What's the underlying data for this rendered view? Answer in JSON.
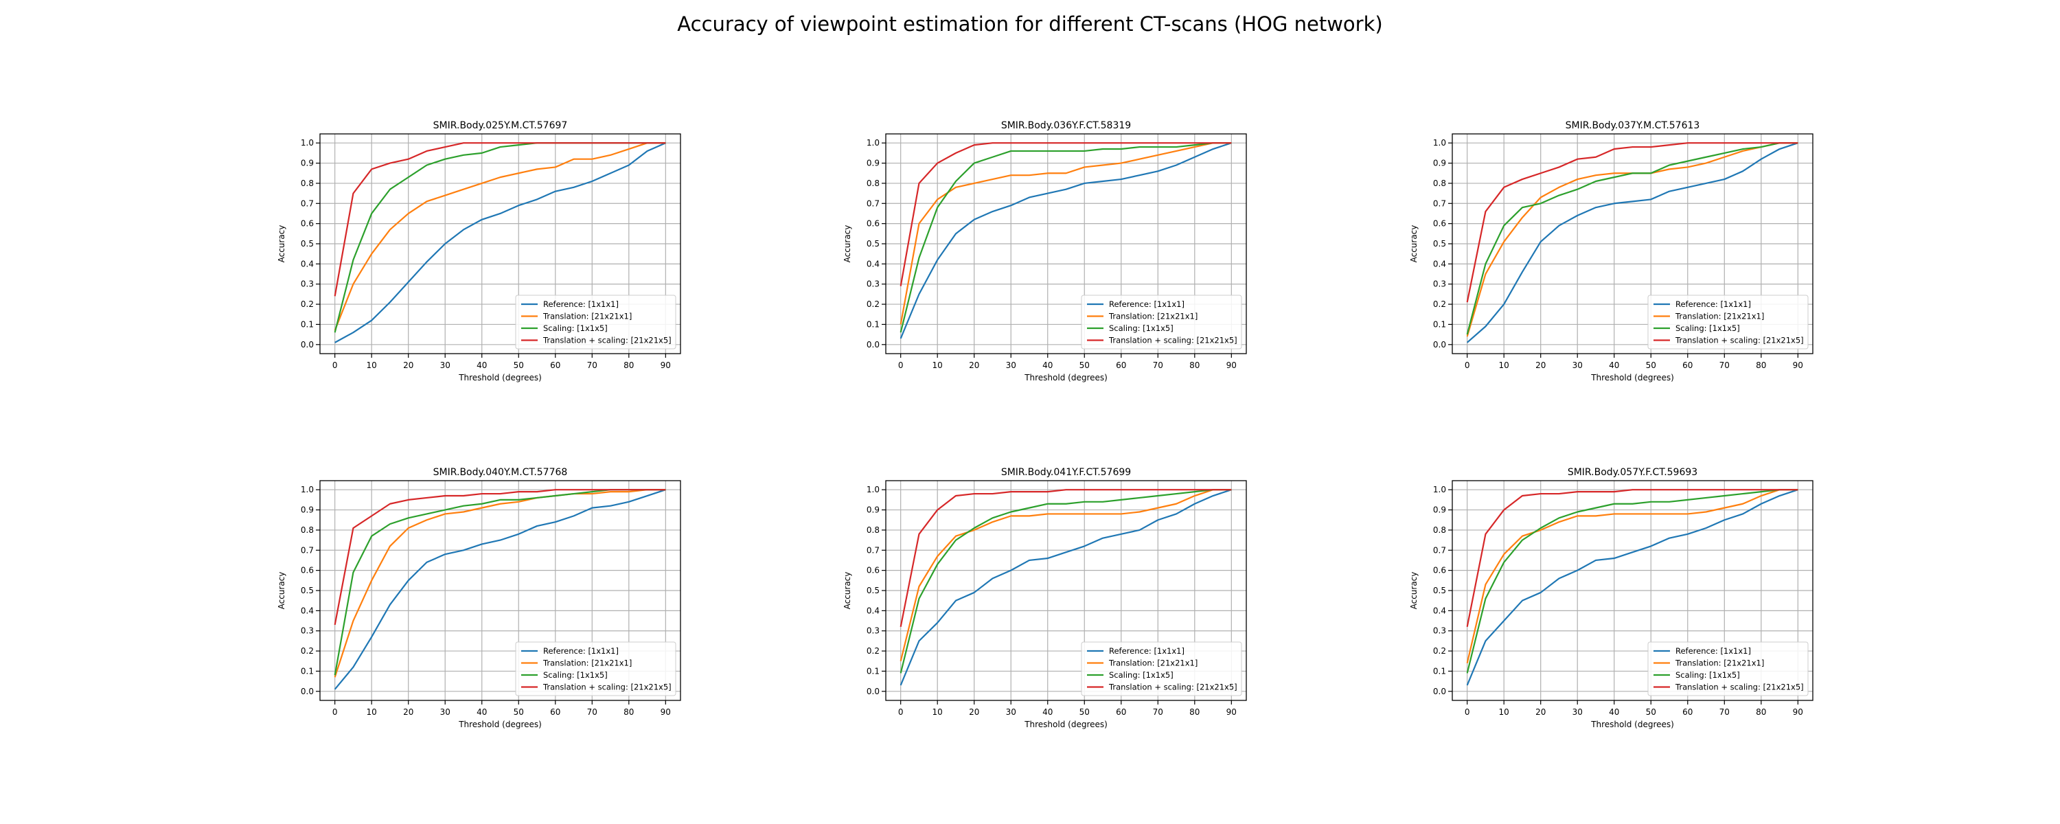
{
  "figure": {
    "title": "Accuracy of viewpoint estimation for different CT-scans (HOG network)"
  },
  "colors": {
    "blue": "#1f77b4",
    "orange": "#ff7f0e",
    "green": "#2ca02c",
    "red": "#d62728",
    "grid": "#b0b0b0"
  },
  "chart_data": [
    {
      "type": "line",
      "title": "SMIR.Body.025Y.M.CT.57697",
      "xlabel": "Threshold (degrees)",
      "ylabel": "Accuracy",
      "xlim": [
        0,
        90
      ],
      "ylim": [
        0,
        1
      ],
      "grid": true,
      "legend_position": "lower-right",
      "x": [
        0,
        5,
        10,
        15,
        20,
        25,
        30,
        35,
        40,
        45,
        50,
        55,
        60,
        65,
        70,
        75,
        80,
        85,
        90
      ],
      "x_ticks": [
        0,
        10,
        20,
        30,
        40,
        50,
        60,
        70,
        80,
        90
      ],
      "y_ticks": [
        "0.0",
        "0.1",
        "0.2",
        "0.3",
        "0.4",
        "0.5",
        "0.6",
        "0.7",
        "0.8",
        "0.9",
        "1.0"
      ],
      "series": [
        {
          "name": "Reference: [1x1x1]",
          "color": "#1f77b4",
          "values": [
            0.01,
            0.06,
            0.12,
            0.21,
            0.31,
            0.41,
            0.5,
            0.57,
            0.62,
            0.65,
            0.69,
            0.72,
            0.76,
            0.78,
            0.81,
            0.85,
            0.89,
            0.96,
            1.0
          ]
        },
        {
          "name": "Translation: [21x21x1]",
          "color": "#ff7f0e",
          "values": [
            0.07,
            0.3,
            0.45,
            0.57,
            0.65,
            0.71,
            0.74,
            0.77,
            0.8,
            0.83,
            0.85,
            0.87,
            0.88,
            0.92,
            0.92,
            0.94,
            0.97,
            1.0,
            1.0
          ]
        },
        {
          "name": "Scaling: [1x1x5]",
          "color": "#2ca02c",
          "values": [
            0.06,
            0.42,
            0.65,
            0.77,
            0.83,
            0.89,
            0.92,
            0.94,
            0.95,
            0.98,
            0.99,
            1.0,
            1.0,
            1.0,
            1.0,
            1.0,
            1.0,
            1.0,
            1.0
          ]
        },
        {
          "name": "Translation + scaling: [21x21x5]",
          "color": "#d62728",
          "values": [
            0.24,
            0.75,
            0.87,
            0.9,
            0.92,
            0.96,
            0.98,
            1.0,
            1.0,
            1.0,
            1.0,
            1.0,
            1.0,
            1.0,
            1.0,
            1.0,
            1.0,
            1.0,
            1.0
          ]
        }
      ]
    },
    {
      "type": "line",
      "title": "SMIR.Body.036Y.F.CT.58319",
      "xlabel": "Threshold (degrees)",
      "ylabel": "Accuracy",
      "xlim": [
        0,
        90
      ],
      "ylim": [
        0,
        1
      ],
      "grid": true,
      "legend_position": "lower-right",
      "x": [
        0,
        5,
        10,
        15,
        20,
        25,
        30,
        35,
        40,
        45,
        50,
        55,
        60,
        65,
        70,
        75,
        80,
        85,
        90
      ],
      "x_ticks": [
        0,
        10,
        20,
        30,
        40,
        50,
        60,
        70,
        80,
        90
      ],
      "y_ticks": [
        "0.0",
        "0.1",
        "0.2",
        "0.3",
        "0.4",
        "0.5",
        "0.6",
        "0.7",
        "0.8",
        "0.9",
        "1.0"
      ],
      "series": [
        {
          "name": "Reference: [1x1x1]",
          "color": "#1f77b4",
          "values": [
            0.03,
            0.25,
            0.42,
            0.55,
            0.62,
            0.66,
            0.69,
            0.73,
            0.75,
            0.77,
            0.8,
            0.81,
            0.82,
            0.84,
            0.86,
            0.89,
            0.93,
            0.97,
            1.0
          ]
        },
        {
          "name": "Translation: [21x21x1]",
          "color": "#ff7f0e",
          "values": [
            0.1,
            0.6,
            0.72,
            0.78,
            0.8,
            0.82,
            0.84,
            0.84,
            0.85,
            0.85,
            0.88,
            0.89,
            0.9,
            0.92,
            0.94,
            0.96,
            0.98,
            1.0,
            1.0
          ]
        },
        {
          "name": "Scaling: [1x1x5]",
          "color": "#2ca02c",
          "values": [
            0.06,
            0.43,
            0.68,
            0.81,
            0.9,
            0.93,
            0.96,
            0.96,
            0.96,
            0.96,
            0.96,
            0.97,
            0.97,
            0.98,
            0.98,
            0.98,
            0.99,
            1.0,
            1.0
          ]
        },
        {
          "name": "Translation + scaling: [21x21x5]",
          "color": "#d62728",
          "values": [
            0.29,
            0.8,
            0.9,
            0.95,
            0.99,
            1.0,
            1.0,
            1.0,
            1.0,
            1.0,
            1.0,
            1.0,
            1.0,
            1.0,
            1.0,
            1.0,
            1.0,
            1.0,
            1.0
          ]
        }
      ]
    },
    {
      "type": "line",
      "title": "SMIR.Body.037Y.M.CT.57613",
      "xlabel": "Threshold (degrees)",
      "ylabel": "Accuracy",
      "xlim": [
        0,
        90
      ],
      "ylim": [
        0,
        1
      ],
      "grid": true,
      "legend_position": "lower-right",
      "x": [
        0,
        5,
        10,
        15,
        20,
        25,
        30,
        35,
        40,
        45,
        50,
        55,
        60,
        65,
        70,
        75,
        80,
        85,
        90
      ],
      "x_ticks": [
        0,
        10,
        20,
        30,
        40,
        50,
        60,
        70,
        80,
        90
      ],
      "y_ticks": [
        "0.0",
        "0.1",
        "0.2",
        "0.3",
        "0.4",
        "0.5",
        "0.6",
        "0.7",
        "0.8",
        "0.9",
        "1.0"
      ],
      "series": [
        {
          "name": "Reference: [1x1x1]",
          "color": "#1f77b4",
          "values": [
            0.01,
            0.09,
            0.2,
            0.36,
            0.51,
            0.59,
            0.64,
            0.68,
            0.7,
            0.71,
            0.72,
            0.76,
            0.78,
            0.8,
            0.82,
            0.86,
            0.92,
            0.97,
            1.0
          ]
        },
        {
          "name": "Translation: [21x21x1]",
          "color": "#ff7f0e",
          "values": [
            0.04,
            0.35,
            0.51,
            0.63,
            0.73,
            0.78,
            0.82,
            0.84,
            0.85,
            0.85,
            0.85,
            0.87,
            0.88,
            0.9,
            0.93,
            0.96,
            0.98,
            1.0,
            1.0
          ]
        },
        {
          "name": "Scaling: [1x1x5]",
          "color": "#2ca02c",
          "values": [
            0.05,
            0.4,
            0.59,
            0.68,
            0.7,
            0.74,
            0.77,
            0.81,
            0.83,
            0.85,
            0.85,
            0.89,
            0.91,
            0.93,
            0.95,
            0.97,
            0.98,
            1.0,
            1.0
          ]
        },
        {
          "name": "Translation + scaling: [21x21x5]",
          "color": "#d62728",
          "values": [
            0.21,
            0.66,
            0.78,
            0.82,
            0.85,
            0.88,
            0.92,
            0.93,
            0.97,
            0.98,
            0.98,
            0.99,
            1.0,
            1.0,
            1.0,
            1.0,
            1.0,
            1.0,
            1.0
          ]
        }
      ]
    },
    {
      "type": "line",
      "title": "SMIR.Body.040Y.M.CT.57768",
      "xlabel": "Threshold (degrees)",
      "ylabel": "Accuracy",
      "xlim": [
        0,
        90
      ],
      "ylim": [
        0,
        1
      ],
      "grid": true,
      "legend_position": "lower-right",
      "x": [
        0,
        5,
        10,
        15,
        20,
        25,
        30,
        35,
        40,
        45,
        50,
        55,
        60,
        65,
        70,
        75,
        80,
        85,
        90
      ],
      "x_ticks": [
        0,
        10,
        20,
        30,
        40,
        50,
        60,
        70,
        80,
        90
      ],
      "y_ticks": [
        "0.0",
        "0.1",
        "0.2",
        "0.3",
        "0.4",
        "0.5",
        "0.6",
        "0.7",
        "0.8",
        "0.9",
        "1.0"
      ],
      "series": [
        {
          "name": "Reference: [1x1x1]",
          "color": "#1f77b4",
          "values": [
            0.01,
            0.12,
            0.27,
            0.43,
            0.55,
            0.64,
            0.68,
            0.7,
            0.73,
            0.75,
            0.78,
            0.82,
            0.84,
            0.87,
            0.91,
            0.92,
            0.94,
            0.97,
            1.0
          ]
        },
        {
          "name": "Translation: [21x21x1]",
          "color": "#ff7f0e",
          "values": [
            0.07,
            0.35,
            0.55,
            0.72,
            0.81,
            0.85,
            0.88,
            0.89,
            0.91,
            0.93,
            0.94,
            0.96,
            0.97,
            0.98,
            0.98,
            0.99,
            0.99,
            1.0,
            1.0
          ]
        },
        {
          "name": "Scaling: [1x1x5]",
          "color": "#2ca02c",
          "values": [
            0.08,
            0.59,
            0.77,
            0.83,
            0.86,
            0.88,
            0.9,
            0.92,
            0.93,
            0.95,
            0.95,
            0.96,
            0.97,
            0.98,
            0.99,
            1.0,
            1.0,
            1.0,
            1.0
          ]
        },
        {
          "name": "Translation + scaling: [21x21x5]",
          "color": "#d62728",
          "values": [
            0.33,
            0.81,
            0.87,
            0.93,
            0.95,
            0.96,
            0.97,
            0.97,
            0.98,
            0.98,
            0.99,
            0.99,
            1.0,
            1.0,
            1.0,
            1.0,
            1.0,
            1.0,
            1.0
          ]
        }
      ]
    },
    {
      "type": "line",
      "title": "SMIR.Body.041Y.F.CT.57699",
      "xlabel": "Threshold (degrees)",
      "ylabel": "Accuracy",
      "xlim": [
        0,
        90
      ],
      "ylim": [
        0,
        1
      ],
      "grid": true,
      "legend_position": "lower-right",
      "x": [
        0,
        5,
        10,
        15,
        20,
        25,
        30,
        35,
        40,
        45,
        50,
        55,
        60,
        65,
        70,
        75,
        80,
        85,
        90
      ],
      "x_ticks": [
        0,
        10,
        20,
        30,
        40,
        50,
        60,
        70,
        80,
        90
      ],
      "y_ticks": [
        "0.0",
        "0.1",
        "0.2",
        "0.3",
        "0.4",
        "0.5",
        "0.6",
        "0.7",
        "0.8",
        "0.9",
        "1.0"
      ],
      "series": [
        {
          "name": "Reference: [1x1x1]",
          "color": "#1f77b4",
          "values": [
            0.03,
            0.25,
            0.34,
            0.45,
            0.49,
            0.56,
            0.6,
            0.65,
            0.66,
            0.69,
            0.72,
            0.76,
            0.78,
            0.8,
            0.85,
            0.88,
            0.93,
            0.97,
            1.0
          ]
        },
        {
          "name": "Translation: [21x21x1]",
          "color": "#ff7f0e",
          "values": [
            0.15,
            0.52,
            0.67,
            0.77,
            0.8,
            0.84,
            0.87,
            0.87,
            0.88,
            0.88,
            0.88,
            0.88,
            0.88,
            0.89,
            0.91,
            0.93,
            0.97,
            1.0,
            1.0
          ]
        },
        {
          "name": "Scaling: [1x1x5]",
          "color": "#2ca02c",
          "values": [
            0.09,
            0.46,
            0.63,
            0.75,
            0.81,
            0.86,
            0.89,
            0.91,
            0.93,
            0.93,
            0.94,
            0.94,
            0.95,
            0.96,
            0.97,
            0.98,
            0.99,
            1.0,
            1.0
          ]
        },
        {
          "name": "Translation + scaling: [21x21x5]",
          "color": "#d62728",
          "values": [
            0.32,
            0.78,
            0.9,
            0.97,
            0.98,
            0.98,
            0.99,
            0.99,
            0.99,
            1.0,
            1.0,
            1.0,
            1.0,
            1.0,
            1.0,
            1.0,
            1.0,
            1.0,
            1.0
          ]
        }
      ]
    },
    {
      "type": "line",
      "title": "SMIR.Body.057Y.F.CT.59693",
      "xlabel": "Threshold (degrees)",
      "ylabel": "Accuracy",
      "xlim": [
        0,
        90
      ],
      "ylim": [
        0,
        1
      ],
      "grid": true,
      "legend_position": "lower-right",
      "x": [
        0,
        5,
        10,
        15,
        20,
        25,
        30,
        35,
        40,
        45,
        50,
        55,
        60,
        65,
        70,
        75,
        80,
        85,
        90
      ],
      "x_ticks": [
        0,
        10,
        20,
        30,
        40,
        50,
        60,
        70,
        80,
        90
      ],
      "y_ticks": [
        "0.0",
        "0.1",
        "0.2",
        "0.3",
        "0.4",
        "0.5",
        "0.6",
        "0.7",
        "0.8",
        "0.9",
        "1.0"
      ],
      "series": [
        {
          "name": "Reference: [1x1x1]",
          "color": "#1f77b4",
          "values": [
            0.03,
            0.25,
            0.35,
            0.45,
            0.49,
            0.56,
            0.6,
            0.65,
            0.66,
            0.69,
            0.72,
            0.76,
            0.78,
            0.81,
            0.85,
            0.88,
            0.93,
            0.97,
            1.0
          ]
        },
        {
          "name": "Translation: [21x21x1]",
          "color": "#ff7f0e",
          "values": [
            0.14,
            0.53,
            0.68,
            0.77,
            0.8,
            0.84,
            0.87,
            0.87,
            0.88,
            0.88,
            0.88,
            0.88,
            0.88,
            0.89,
            0.91,
            0.93,
            0.97,
            1.0,
            1.0
          ]
        },
        {
          "name": "Scaling: [1x1x5]",
          "color": "#2ca02c",
          "values": [
            0.09,
            0.46,
            0.64,
            0.75,
            0.81,
            0.86,
            0.89,
            0.91,
            0.93,
            0.93,
            0.94,
            0.94,
            0.95,
            0.96,
            0.97,
            0.98,
            0.99,
            1.0,
            1.0
          ]
        },
        {
          "name": "Translation + scaling: [21x21x5]",
          "color": "#d62728",
          "values": [
            0.32,
            0.78,
            0.9,
            0.97,
            0.98,
            0.98,
            0.99,
            0.99,
            0.99,
            1.0,
            1.0,
            1.0,
            1.0,
            1.0,
            1.0,
            1.0,
            1.0,
            1.0,
            1.0
          ]
        }
      ]
    }
  ]
}
